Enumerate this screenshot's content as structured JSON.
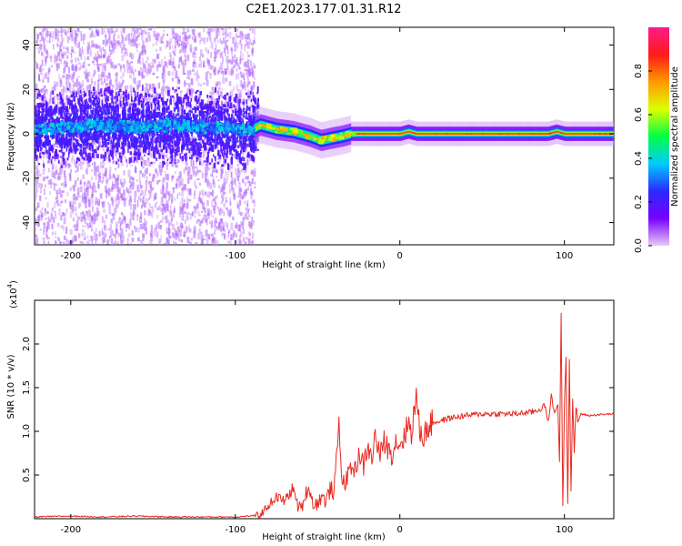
{
  "title": "C2E1.2023.177.01.31.R12",
  "chart_data": [
    {
      "type": "heatmap",
      "xlabel": "Height of straight line (km)",
      "ylabel": "Frequency (Hz)",
      "xlim": [
        -222,
        130
      ],
      "ylim": [
        -50,
        48
      ],
      "xticks": [
        -200,
        -100,
        0,
        100
      ],
      "xtick_labels": [
        "-200",
        "-100",
        "0",
        "100"
      ],
      "yticks": [
        -40,
        -20,
        0,
        20,
        40
      ],
      "ytick_labels": [
        "-40",
        "-20",
        "0",
        "20",
        "40"
      ],
      "colorbar": {
        "label": "Normalized spectral amplitude",
        "range": [
          0,
          1
        ],
        "ticks": [
          0.0,
          0.2,
          0.4,
          0.6,
          0.8
        ],
        "tick_labels": [
          "0.0",
          "0.2",
          "0.4",
          "0.6",
          "0.8"
        ],
        "colors": [
          "#e9c9f5",
          "#7700ff",
          "#2a2aff",
          "#00ccff",
          "#00ff44",
          "#ddff00",
          "#ff9900",
          "#ff1a1a",
          "#ff1a8c"
        ]
      },
      "ridge": {
        "x": [
          -222,
          -200,
          -180,
          -160,
          -140,
          -120,
          -100,
          -90,
          -85,
          -75,
          -65,
          -55,
          -48,
          -42,
          -35,
          -30,
          -20,
          0,
          5,
          10,
          50,
          90,
          95,
          100,
          130
        ],
        "y": [
          2,
          3,
          4,
          3,
          4,
          3,
          2,
          2,
          4,
          2,
          1,
          -1,
          -3,
          -2,
          -1,
          0,
          0,
          0,
          1,
          0,
          0,
          0,
          1,
          0,
          0
        ]
      }
    },
    {
      "type": "line",
      "xlabel": "Height of straight line (km)",
      "ylabel": "SNR (10 * v/v)",
      "y_multiplier": "(x10",
      "y_multiplier_exp": "4",
      "xlim": [
        -222,
        130
      ],
      "ylim": [
        0,
        2.5
      ],
      "xticks": [
        -200,
        -100,
        0,
        100
      ],
      "xtick_labels": [
        "-200",
        "-100",
        "0",
        "100"
      ],
      "yticks": [
        0.5,
        1.0,
        1.5,
        2.0
      ],
      "ytick_labels": [
        "0.5",
        "1.0",
        "1.5",
        "2.0"
      ],
      "series": [
        {
          "color": "#e8281e",
          "x": [
            -222,
            -200,
            -180,
            -160,
            -140,
            -120,
            -100,
            -92,
            -85,
            -80,
            -75,
            -70,
            -65,
            -62,
            -60,
            -57,
            -55,
            -52,
            -50,
            -47,
            -45,
            -42,
            -40,
            -37,
            -35,
            -32,
            -30,
            -27,
            -25,
            -22,
            -20,
            -17,
            -15,
            -12,
            -10,
            -7,
            -5,
            -2,
            0,
            3,
            5,
            7,
            10,
            12,
            15,
            17,
            20,
            25,
            30,
            40,
            50,
            60,
            70,
            80,
            85,
            88,
            90,
            92,
            94,
            96,
            97,
            98,
            99,
            100,
            101,
            102,
            103,
            104,
            105,
            106,
            107,
            108,
            110,
            115,
            120,
            130
          ],
          "y": [
            0.02,
            0.03,
            0.02,
            0.03,
            0.02,
            0.02,
            0.02,
            0.03,
            0.04,
            0.15,
            0.25,
            0.2,
            0.35,
            0.15,
            0.1,
            0.3,
            0.35,
            0.12,
            0.2,
            0.25,
            0.2,
            0.35,
            0.3,
            1.1,
            0.4,
            0.45,
            0.6,
            0.55,
            0.75,
            0.6,
            0.8,
            0.7,
            0.95,
            0.7,
            0.9,
            0.8,
            0.75,
            0.9,
            0.85,
            0.95,
            1.1,
            1.0,
            1.4,
            1.0,
            0.95,
            1.05,
            1.1,
            1.12,
            1.15,
            1.18,
            1.2,
            1.2,
            1.2,
            1.22,
            1.25,
            1.3,
            1.1,
            1.4,
            1.2,
            1.35,
            0.6,
            2.4,
            0.1,
            1.3,
            1.9,
            0.2,
            1.8,
            0.3,
            1.4,
            0.7,
            1.3,
            1.1,
            1.2,
            1.18,
            1.19,
            1.2
          ]
        }
      ]
    }
  ]
}
